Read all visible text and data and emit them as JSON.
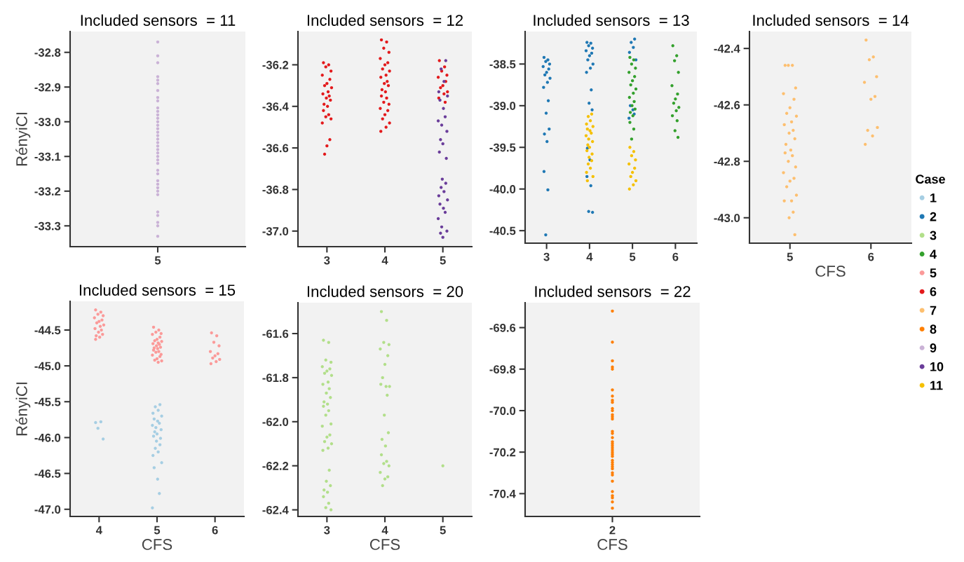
{
  "chart_data": [
    {
      "type": "scatter",
      "title": "Included sensors  = 11",
      "ylabel": "RényiCI",
      "marker": "circle",
      "categories": [
        "5"
      ],
      "ylim": [
        -33.36,
        -32.74
      ],
      "yticks": [
        -33.3,
        -33.2,
        -33.1,
        {
          "value": -33.0,
          "label": "-33.0"
        },
        -32.9,
        -32.8
      ],
      "series": [
        {
          "color": "#cab2d6",
          "x": [
            "5",
            "5",
            "5",
            "5",
            "5",
            "5",
            "5",
            "5",
            "5",
            "5",
            "5",
            "5",
            "5",
            "5",
            "5",
            "5",
            "5",
            "5",
            "5",
            "5",
            "5",
            "5",
            "5",
            "5",
            "5",
            "5",
            "5",
            "5",
            "5",
            "5",
            "5",
            "5",
            "5",
            "5",
            "5",
            "5",
            "5",
            "5"
          ],
          "values": [
            -32.77,
            -32.81,
            -32.83,
            -32.87,
            -32.88,
            -32.89,
            -32.91,
            -32.93,
            -32.94,
            -32.96,
            -32.97,
            -32.98,
            -32.99,
            -33.0,
            -33.01,
            -33.02,
            -33.03,
            -33.04,
            -33.05,
            -33.06,
            -33.07,
            -33.08,
            -33.09,
            -33.1,
            -33.11,
            -33.12,
            -33.14,
            -33.15,
            -33.17,
            -33.18,
            -33.19,
            -33.2,
            -33.21,
            -33.26,
            -33.27,
            -33.29,
            -33.3,
            -33.33
          ]
        }
      ]
    },
    {
      "type": "scatter",
      "title": "Included sensors  = 12",
      "marker": "circle",
      "xlim": [
        2.5,
        5.5
      ],
      "xticks": [
        3,
        4,
        5
      ],
      "ylim": [
        -37.075,
        -36.04
      ],
      "yticks": [
        {
          "value": -37.0,
          "label": "-37.0"
        },
        -36.8,
        -36.6,
        -36.4,
        -36.2
      ],
      "series": [
        {
          "color": "#e31a1c",
          "x": [
            2.94,
            3.03,
            2.98,
            3.07,
            2.92,
            3.05,
            3.0,
            2.96,
            3.08,
            3.02,
            2.93,
            3.04,
            2.99,
            3.06,
            2.95,
            3.01,
            2.94,
            3.03,
            2.98,
            3.07,
            2.92,
            3.05,
            3.0,
            2.96,
            3.94,
            4.03,
            3.98,
            4.07,
            3.92,
            4.05,
            4.0,
            3.96,
            4.08,
            4.02,
            3.93,
            4.04,
            3.99,
            4.06,
            3.95,
            4.01,
            3.94,
            4.03,
            3.98,
            4.07,
            3.92,
            4.05,
            4.0,
            3.96,
            4.08,
            4.02,
            3.93,
            4.94,
            5.03,
            4.98,
            5.07,
            4.92,
            5.05,
            5.0,
            4.96,
            5.08,
            5.02,
            4.93,
            5.04
          ],
          "values": [
            -36.19,
            -36.2,
            -36.21,
            -36.23,
            -36.25,
            -36.27,
            -36.29,
            -36.3,
            -36.31,
            -36.33,
            -36.34,
            -36.35,
            -36.36,
            -36.37,
            -36.39,
            -36.4,
            -36.42,
            -36.44,
            -36.45,
            -36.46,
            -36.48,
            -36.56,
            -36.59,
            -36.63,
            -36.08,
            -36.09,
            -36.12,
            -36.14,
            -36.17,
            -36.19,
            -36.2,
            -36.22,
            -36.23,
            -36.25,
            -36.26,
            -36.28,
            -36.29,
            -36.3,
            -36.32,
            -36.33,
            -36.35,
            -36.36,
            -36.38,
            -36.39,
            -36.41,
            -36.42,
            -36.44,
            -36.46,
            -36.48,
            -36.5,
            -36.52,
            -36.18,
            -36.21,
            -36.23,
            -36.25,
            -36.26,
            -36.28,
            -36.3,
            -36.31,
            -36.33,
            -36.34,
            -36.36,
            -36.38
          ]
        },
        {
          "color": "#6a3d9a",
          "x": [
            5.05,
            4.97,
            5.02,
            4.93,
            5.08,
            4.95,
            5.01,
            5.04,
            4.92,
            4.98,
            5.07,
            4.96,
            5.0,
            4.94,
            5.06,
            4.99,
            5.05,
            4.97,
            5.02,
            4.93,
            5.08,
            4.95,
            5.01,
            5.04,
            4.92,
            4.98,
            5.07,
            4.96,
            5.0
          ],
          "values": [
            -36.18,
            -36.22,
            -36.28,
            -36.33,
            -36.35,
            -36.37,
            -36.41,
            -36.45,
            -36.47,
            -36.49,
            -36.52,
            -36.56,
            -36.58,
            -36.62,
            -36.65,
            -36.75,
            -36.77,
            -36.79,
            -36.81,
            -36.83,
            -36.85,
            -36.87,
            -36.89,
            -36.91,
            -36.94,
            -36.98,
            -37.0,
            -37.01,
            -37.03
          ]
        }
      ]
    },
    {
      "type": "scatter",
      "title": "Included sensors  = 13",
      "marker": "circle",
      "xlim": [
        2.5,
        6.5
      ],
      "xticks": [
        3,
        4,
        5,
        6
      ],
      "ylim": [
        -40.65,
        -38.11
      ],
      "yticks": [
        -40.5,
        {
          "value": -40.0,
          "label": "-40.0"
        },
        -39.5,
        {
          "value": -39.0,
          "label": "-39.0"
        },
        -38.5
      ],
      "series": [
        {
          "color": "#1f78b4",
          "x": [
            2.94,
            3.03,
            2.98,
            3.07,
            2.92,
            3.05,
            3.0,
            2.96,
            3.08,
            3.02,
            2.93,
            3.04,
            2.99,
            3.06,
            2.95,
            3.01,
            2.94,
            3.03,
            2.98,
            3.94,
            4.03,
            3.98,
            4.07,
            3.92,
            4.05,
            4.0,
            3.96,
            4.08,
            4.02,
            3.93,
            4.04,
            3.99,
            4.06,
            3.95,
            4.01,
            3.94,
            4.03,
            3.98,
            4.07,
            5.05,
            4.97,
            5.02,
            4.93,
            5.08,
            4.95,
            5.01,
            5.04,
            4.92
          ],
          "values": [
            -38.42,
            -38.45,
            -38.47,
            -38.5,
            -38.53,
            -38.56,
            -38.6,
            -38.63,
            -38.67,
            -38.72,
            -38.78,
            -38.94,
            -39.09,
            -39.28,
            -39.34,
            -39.43,
            -39.79,
            -40.01,
            -40.55,
            -38.24,
            -38.25,
            -38.28,
            -38.31,
            -38.34,
            -38.37,
            -38.4,
            -38.45,
            -38.5,
            -38.55,
            -38.6,
            -38.81,
            -38.97,
            -39.05,
            -39.51,
            -39.65,
            -39.85,
            -39.96,
            -40.27,
            -40.28,
            -38.2,
            -38.24,
            -38.3,
            -38.36,
            -38.45,
            -39.0,
            -39.05,
            -39.1,
            -39.15
          ]
        },
        {
          "color": "#f5c000",
          "x": [
            4.05,
            3.97,
            4.02,
            3.93,
            4.08,
            3.95,
            4.01,
            4.04,
            3.92,
            3.98,
            4.07,
            3.96,
            4.0,
            3.94,
            4.06,
            3.99,
            4.05,
            3.97,
            4.02,
            3.93,
            4.08,
            3.95,
            4.94,
            5.03,
            4.98,
            5.07,
            4.92,
            5.05,
            5.0,
            4.96,
            5.08,
            5.02,
            4.93
          ],
          "values": [
            -39.1,
            -39.13,
            -39.18,
            -39.22,
            -39.25,
            -39.28,
            -39.3,
            -39.33,
            -39.36,
            -39.4,
            -39.43,
            -39.47,
            -39.5,
            -39.54,
            -39.58,
            -39.62,
            -39.66,
            -39.7,
            -39.75,
            -39.8,
            -39.85,
            -39.9,
            -39.5,
            -39.55,
            -39.6,
            -39.65,
            -39.7,
            -39.75,
            -39.8,
            -39.85,
            -39.9,
            -39.95,
            -40.0
          ]
        },
        {
          "color": "#33a02c",
          "x": [
            4.94,
            5.03,
            4.98,
            5.07,
            4.92,
            5.05,
            5.0,
            4.96,
            5.08,
            5.02,
            4.93,
            5.04,
            4.99,
            5.06,
            4.95,
            5.01,
            4.94,
            5.03,
            4.98,
            5.94,
            6.03,
            5.98,
            6.07,
            5.92,
            6.05,
            6.0,
            5.96,
            6.08,
            6.02,
            5.93,
            6.04,
            5.99,
            6.06
          ],
          "values": [
            -38.42,
            -38.45,
            -38.5,
            -38.55,
            -38.6,
            -38.65,
            -38.7,
            -38.75,
            -38.8,
            -38.85,
            -38.9,
            -38.95,
            -39.0,
            -39.04,
            -39.08,
            -39.12,
            -39.2,
            -39.28,
            -39.4,
            -38.28,
            -38.4,
            -38.46,
            -38.6,
            -38.76,
            -38.86,
            -38.92,
            -38.97,
            -39.02,
            -39.06,
            -39.12,
            -39.18,
            -39.3,
            -39.38
          ]
        }
      ]
    },
    {
      "type": "scatter",
      "title": "Included sensors  = 14",
      "xlabel": "CFS",
      "marker": "circle",
      "legend": "right",
      "legend_title": "Case",
      "xlim": [
        4.5,
        6.5
      ],
      "xticks": [
        5,
        6
      ],
      "ylim": [
        -43.09,
        -42.34
      ],
      "yticks": [
        {
          "value": -43.0,
          "label": "-43.0"
        },
        -42.8,
        -42.6,
        -42.4
      ],
      "series": [
        {
          "name": "1",
          "color": "#a6cee3"
        },
        {
          "name": "2",
          "color": "#1f78b4"
        },
        {
          "name": "3",
          "color": "#b2df8a"
        },
        {
          "name": "4",
          "color": "#33a02c"
        },
        {
          "name": "5",
          "color": "#fb9a99"
        },
        {
          "name": "6",
          "color": "#e31a1c"
        },
        {
          "name": "7",
          "color": "#fdbf6f",
          "x": [
            4.94,
            5.03,
            4.98,
            5.07,
            4.92,
            5.05,
            5.0,
            4.96,
            5.08,
            5.02,
            4.93,
            5.04,
            4.99,
            5.06,
            4.95,
            5.01,
            4.94,
            5.03,
            4.98,
            5.07,
            4.92,
            5.05,
            5.0,
            4.96,
            5.08,
            5.02,
            4.93,
            5.04,
            4.99,
            5.06,
            5.94,
            6.03,
            5.98,
            6.07,
            5.92,
            6.05,
            6.0,
            5.96,
            6.08,
            6.02,
            5.93
          ],
          "values": [
            -42.46,
            -42.46,
            -42.46,
            -42.54,
            -42.56,
            -42.58,
            -42.61,
            -42.63,
            -42.64,
            -42.66,
            -42.67,
            -42.69,
            -42.7,
            -42.72,
            -42.74,
            -42.76,
            -42.77,
            -42.78,
            -42.8,
            -42.82,
            -42.84,
            -42.86,
            -42.87,
            -42.89,
            -42.92,
            -42.94,
            -42.94,
            -42.98,
            -43.0,
            -43.06,
            -42.37,
            -42.43,
            -42.44,
            -42.5,
            -42.52,
            -42.57,
            -42.58,
            -42.69,
            -42.68,
            -42.71,
            -42.74
          ]
        },
        {
          "name": "8",
          "color": "#ff7f00"
        },
        {
          "name": "9",
          "color": "#cab2d6"
        },
        {
          "name": "10",
          "color": "#6a3d9a"
        },
        {
          "name": "11",
          "color": "#f5c000"
        }
      ]
    },
    {
      "type": "scatter",
      "title": "Included sensors  = 15",
      "xlabel": "CFS",
      "ylabel": "RényiCI",
      "marker": "circle",
      "xlim": [
        3.5,
        6.5
      ],
      "xticks": [
        4,
        5,
        6
      ],
      "ylim": [
        -47.1,
        -44.1
      ],
      "yticks": [
        {
          "value": -47.0,
          "label": "-47.0"
        },
        -46.5,
        {
          "value": -46.0,
          "label": "-46.0"
        },
        -45.5,
        {
          "value": -45.0,
          "label": "-45.0"
        },
        -44.5
      ],
      "series": [
        {
          "color": "#fb9a99",
          "x": [
            3.94,
            4.03,
            3.98,
            4.07,
            3.92,
            4.05,
            4.0,
            3.96,
            4.08,
            4.02,
            3.93,
            4.04,
            3.99,
            4.06,
            3.95,
            4.01,
            3.94,
            4.94,
            5.03,
            4.98,
            5.07,
            4.92,
            5.05,
            5.0,
            4.96,
            5.08,
            5.02,
            4.93,
            5.04,
            4.99,
            5.06,
            4.95,
            5.01,
            4.94,
            5.03,
            4.98,
            5.07,
            4.92,
            5.05,
            5.0,
            4.96,
            5.08,
            5.02,
            5.94,
            6.03,
            5.98,
            6.07,
            5.92,
            6.05,
            6.0,
            5.96,
            6.08,
            6.02,
            5.93
          ],
          "values": [
            -44.22,
            -44.25,
            -44.28,
            -44.3,
            -44.33,
            -44.36,
            -44.38,
            -44.4,
            -44.43,
            -44.45,
            -44.48,
            -44.5,
            -44.53,
            -44.56,
            -44.58,
            -44.6,
            -44.63,
            -44.46,
            -44.5,
            -44.53,
            -44.55,
            -44.56,
            -44.6,
            -44.63,
            -44.65,
            -44.66,
            -44.68,
            -44.69,
            -44.7,
            -44.72,
            -44.74,
            -44.75,
            -44.76,
            -44.78,
            -44.8,
            -44.81,
            -44.84,
            -44.85,
            -44.87,
            -44.9,
            -44.92,
            -44.93,
            -44.95,
            -44.54,
            -44.58,
            -44.67,
            -44.72,
            -44.8,
            -44.83,
            -44.86,
            -44.89,
            -44.91,
            -44.94,
            -44.97
          ]
        },
        {
          "color": "#a6cee3",
          "x": [
            3.94,
            4.03,
            3.98,
            4.07,
            5.05,
            4.97,
            5.02,
            4.93,
            5.08,
            4.95,
            5.01,
            5.04,
            4.92,
            4.98,
            5.07,
            4.96,
            5.0,
            4.94,
            5.06,
            4.99,
            5.05,
            4.97,
            5.02,
            4.93,
            5.08,
            4.95,
            5.01,
            5.04,
            4.92
          ],
          "values": [
            -45.79,
            -45.78,
            -45.87,
            -46.02,
            -45.54,
            -45.57,
            -45.62,
            -45.66,
            -45.7,
            -45.74,
            -45.77,
            -45.8,
            -45.83,
            -45.86,
            -45.89,
            -45.92,
            -45.95,
            -45.98,
            -46.01,
            -46.05,
            -46.1,
            -46.15,
            -46.2,
            -46.25,
            -46.35,
            -46.42,
            -46.58,
            -46.78,
            -46.98
          ]
        }
      ]
    },
    {
      "type": "scatter",
      "title": "Included sensors  = 20",
      "xlabel": "CFS",
      "marker": "circle",
      "xlim": [
        2.5,
        5.5
      ],
      "xticks": [
        3,
        4,
        5
      ],
      "ylim": [
        -62.43,
        -61.46
      ],
      "yticks": [
        -62.4,
        -62.2,
        {
          "value": -62.0,
          "label": "-62.0"
        },
        -61.8,
        -61.6
      ],
      "series": [
        {
          "color": "#b2df8a",
          "x": [
            2.94,
            3.03,
            2.98,
            3.07,
            2.92,
            3.05,
            3.0,
            2.96,
            3.08,
            3.02,
            2.93,
            3.04,
            2.99,
            3.06,
            2.95,
            3.01,
            2.94,
            3.03,
            2.98,
            3.07,
            2.92,
            3.05,
            3.0,
            2.96,
            3.08,
            3.02,
            2.93,
            3.04,
            2.99,
            3.06,
            2.95,
            3.01,
            2.94,
            3.03,
            2.98,
            3.07,
            3.94,
            4.03,
            3.98,
            4.07,
            3.92,
            4.05,
            4.0,
            3.96,
            4.08,
            4.02,
            3.93,
            4.04,
            3.99,
            4.06,
            3.95,
            4.01,
            3.94,
            4.03,
            3.98,
            4.07,
            3.92,
            4.05,
            4.0,
            3.96,
            5.0
          ],
          "values": [
            -61.63,
            -61.64,
            -61.72,
            -61.73,
            -61.75,
            -61.76,
            -61.77,
            -61.78,
            -61.79,
            -61.82,
            -61.83,
            -61.85,
            -61.87,
            -61.89,
            -61.91,
            -61.92,
            -61.93,
            -61.95,
            -61.97,
            -62.01,
            -62.02,
            -62.06,
            -62.07,
            -62.09,
            -62.1,
            -62.12,
            -62.13,
            -62.22,
            -62.27,
            -62.29,
            -62.31,
            -62.32,
            -62.34,
            -62.37,
            -62.39,
            -62.4,
            -61.5,
            -61.54,
            -61.64,
            -61.65,
            -61.67,
            -61.7,
            -61.74,
            -61.8,
            -61.84,
            -61.84,
            -61.83,
            -61.88,
            -61.97,
            -62.05,
            -62.08,
            -62.11,
            -62.15,
            -62.18,
            -62.19,
            -62.2,
            -62.23,
            -62.25,
            -62.26,
            -62.29,
            -62.2
          ]
        }
      ]
    },
    {
      "type": "scatter",
      "title": "Included sensors  = 22",
      "xlabel": "CFS",
      "marker": "circle",
      "categories": [
        "2"
      ],
      "ylim": [
        -70.51,
        -69.48
      ],
      "yticks": [
        -70.4,
        -70.2,
        {
          "value": -70.0,
          "label": "-70.0"
        },
        -69.8,
        -69.6
      ],
      "series": [
        {
          "color": "#ff7f00",
          "x": [
            "2",
            "2",
            "2",
            "2",
            "2",
            "2",
            "2",
            "2",
            "2",
            "2",
            "2",
            "2",
            "2",
            "2",
            "2",
            "2",
            "2",
            "2",
            "2",
            "2",
            "2",
            "2",
            "2",
            "2",
            "2",
            "2",
            "2",
            "2",
            "2",
            "2",
            "2",
            "2",
            "2",
            "2",
            "2",
            "2",
            "2",
            "2"
          ],
          "values": [
            -69.52,
            -69.67,
            -69.76,
            -69.79,
            -69.8,
            -69.9,
            -69.93,
            -69.95,
            -69.96,
            -69.99,
            -70.0,
            -70.02,
            -70.03,
            -70.04,
            -70.1,
            -70.11,
            -70.13,
            -70.15,
            -70.16,
            -70.17,
            -70.18,
            -70.19,
            -70.2,
            -70.21,
            -70.22,
            -70.24,
            -70.25,
            -70.26,
            -70.27,
            -70.28,
            -70.3,
            -70.31,
            -70.34,
            -70.39,
            -70.41,
            -70.42,
            -70.44,
            -70.47
          ]
        }
      ]
    }
  ]
}
